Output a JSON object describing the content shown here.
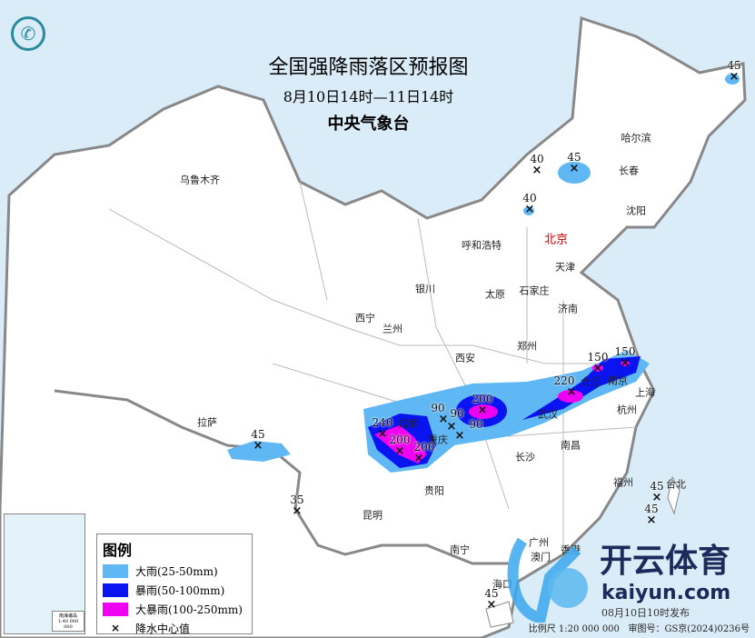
{
  "header": {
    "title": "全国强降雨落区预报图",
    "period": "8月10日14时—11日14时",
    "issuer": "中央气象台"
  },
  "legend": {
    "title": "图例",
    "items": [
      {
        "label": "大雨(25-50mm)",
        "color": "#5fb7f4"
      },
      {
        "label": "暴雨(50-100mm)",
        "color": "#0a14f0"
      },
      {
        "label": "大暴雨(100-250mm)",
        "color": "#f000f0"
      },
      {
        "label": "降水中心值",
        "symbol": "×"
      }
    ]
  },
  "cities": [
    "乌鲁木齐",
    "哈尔滨",
    "长春",
    "沈阳",
    "北京",
    "天津",
    "呼和浩特",
    "石家庄",
    "太原",
    "银川",
    "济南",
    "西宁",
    "兰州",
    "郑州",
    "西安",
    "南京",
    "上海",
    "合肥",
    "成都",
    "重庆",
    "武汉",
    "杭州",
    "拉萨",
    "长沙",
    "南昌",
    "贵阳",
    "福州",
    "台北",
    "昆明",
    "南宁",
    "广州",
    "香港",
    "澳门",
    "海口"
  ],
  "center_values": [
    "45",
    "40",
    "45",
    "40",
    "45",
    "35",
    "45",
    "45",
    "45",
    "240",
    "200",
    "200",
    "90",
    "90",
    "90",
    "200",
    "220",
    "150",
    "150"
  ],
  "footer": {
    "issued": "08月10日10时发布",
    "scale": "比例尺 1:20 000 000",
    "approval": "审图号：GS京(2024)0236号"
  },
  "inset": {
    "label": "南海诸岛",
    "scale": "1:40 000 000"
  },
  "watermark": {
    "text": "开云体育",
    "url": "kaiyun.com"
  },
  "logo_icon": "cma-logo-icon"
}
